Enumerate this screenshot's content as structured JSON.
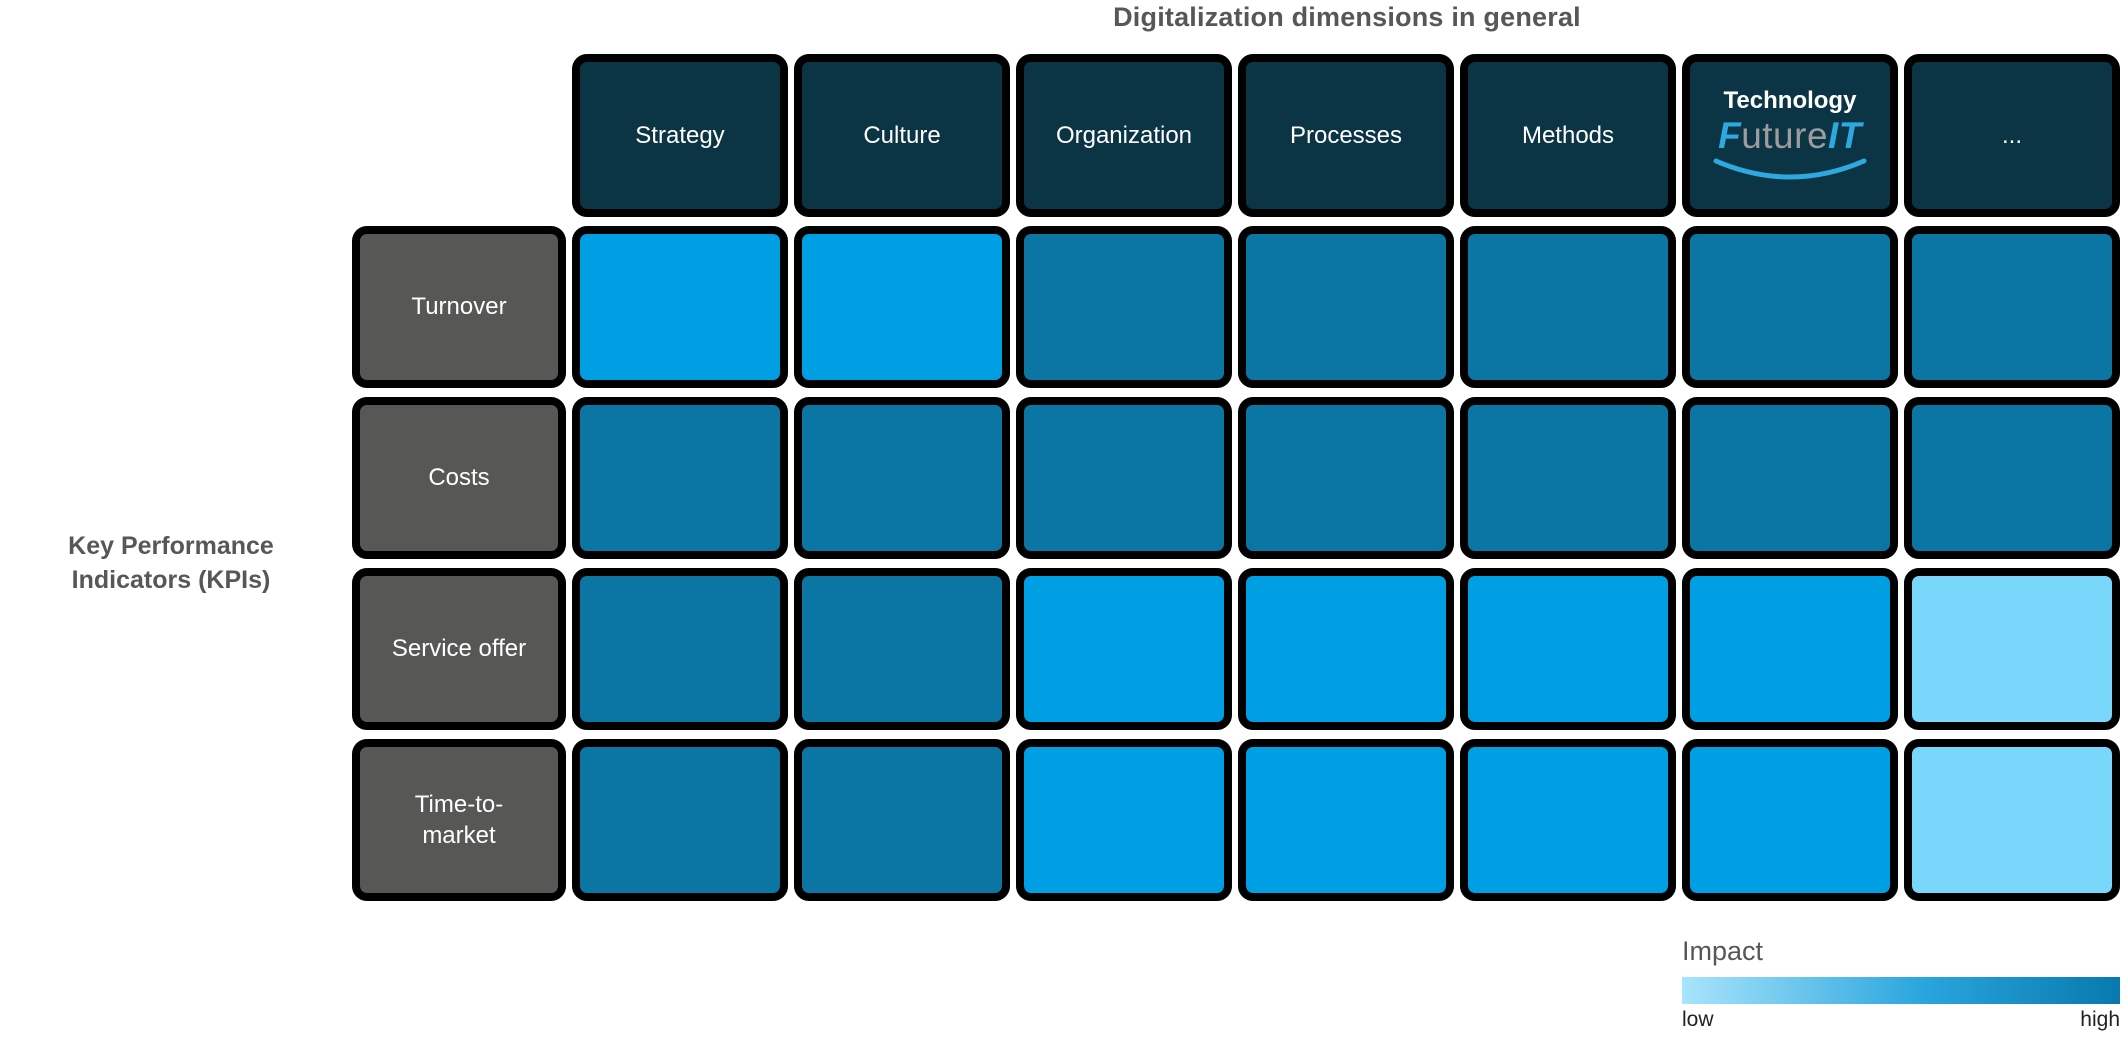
{
  "title": "Digitalization dimensions in general",
  "left_axis_label_line1": "Key Performance",
  "left_axis_label_line2": "Indicators (KPIs)",
  "columns": [
    "Strategy",
    "Culture",
    "Organization",
    "Processes",
    "Methods",
    "Technology",
    "..."
  ],
  "rows": [
    "Turnover",
    "Costs",
    "Service offer",
    "Time-to-market"
  ],
  "technology_logo": {
    "prefix": "F",
    "mid": "uture",
    "suffix": "IT"
  },
  "legend": {
    "title": "Impact",
    "low_label": "low",
    "high_label": "high"
  },
  "chart_data": {
    "type": "heatmap",
    "title": "Digitalization dimensions in general",
    "row_axis_label": "Key Performance Indicators (KPIs)",
    "columns": [
      "Strategy",
      "Culture",
      "Organization",
      "Processes",
      "Methods",
      "Technology",
      "..."
    ],
    "rows": [
      "Turnover",
      "Costs",
      "Service offer",
      "Time-to-market"
    ],
    "values_impact": [
      [
        "medium",
        "medium",
        "high",
        "high",
        "high",
        "high",
        "high"
      ],
      [
        "high",
        "high",
        "high",
        "high",
        "high",
        "high",
        "high"
      ],
      [
        "high",
        "high",
        "medium",
        "medium",
        "medium",
        "medium",
        "low"
      ],
      [
        "high",
        "high",
        "medium",
        "medium",
        "medium",
        "medium",
        "low"
      ]
    ],
    "legend": {
      "title": "Impact",
      "scale_min": "low",
      "scale_max": "high"
    },
    "color_encoding": {
      "low": "#79d7fb",
      "medium": "#009fe3",
      "high": "#0b76a4"
    }
  },
  "colors": {
    "header_bg": "#0b3445",
    "row_label_bg": "#575756",
    "impact_low": "#79d7fb",
    "impact_medium": "#009fe3",
    "impact_high": "#0b76a4",
    "legend_gradient_start": "#a9e4fc",
    "legend_mid": "#2aa5dd",
    "legend_gradient_end": "#0779ae",
    "logo_blue": "#2da9e0",
    "logo_gray": "#9c9c9c",
    "text_gray": "#575756"
  }
}
